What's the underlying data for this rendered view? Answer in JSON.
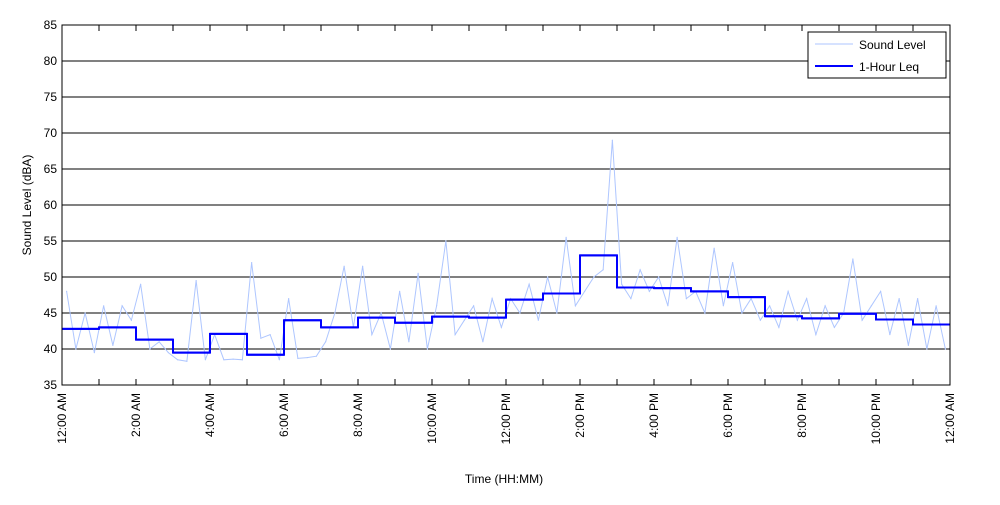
{
  "chart_data": {
    "type": "line",
    "title": "",
    "xlabel": "Time (HH:MM)",
    "ylabel": "Sound Level (dBA)",
    "ylim": [
      35,
      85
    ],
    "xlim_hours": [
      0,
      24
    ],
    "y_ticks": [
      35,
      40,
      45,
      50,
      55,
      60,
      65,
      70,
      75,
      80,
      85
    ],
    "x_tick_labels": [
      "12:00 AM",
      "2:00 AM",
      "4:00 AM",
      "6:00 AM",
      "8:00 AM",
      "10:00 AM",
      "12:00 PM",
      "2:00 PM",
      "4:00 PM",
      "6:00 PM",
      "8:00 PM",
      "10:00 PM",
      "12:00 AM"
    ],
    "grid": "horizontal",
    "legend_position": "top-right",
    "series": [
      {
        "name": "Sound Level",
        "color": "#aec6ff",
        "interval_minutes": 15,
        "values": [
          48,
          40,
          45,
          39.5,
          46,
          40.5,
          46,
          44,
          49,
          40,
          41,
          39.5,
          38.5,
          38.3,
          49.5,
          38.5,
          42,
          38.5,
          38.6,
          38.5,
          52,
          41.5,
          42,
          38.5,
          47,
          38.7,
          38.8,
          39,
          41,
          45,
          51.5,
          43,
          51.5,
          42,
          45,
          40,
          48,
          41,
          50.5,
          40,
          46,
          55,
          42,
          44,
          46,
          41,
          47,
          43,
          47,
          45,
          49,
          44,
          50,
          45,
          55.5,
          46,
          48,
          50,
          51,
          69,
          49,
          47,
          51,
          48,
          50,
          46,
          55.5,
          47,
          48,
          45,
          54,
          46,
          52,
          45,
          47,
          44,
          46,
          43,
          48,
          44,
          47,
          42,
          46,
          43,
          45,
          52.5,
          44,
          46,
          48,
          42,
          47,
          40.5,
          47,
          40,
          46,
          40
        ]
      },
      {
        "name": "1-Hour Leq",
        "color": "#0000ff",
        "interval_minutes": 60,
        "values": [
          42.8,
          43.0,
          41.3,
          39.5,
          42.1,
          39.2,
          44.0,
          43.0,
          44.35,
          43.65,
          44.5,
          44.35,
          46.85,
          47.7,
          53.0,
          48.55,
          48.45,
          48.0,
          47.2,
          44.55,
          44.25,
          44.9,
          44.1,
          43.4
        ]
      }
    ]
  }
}
